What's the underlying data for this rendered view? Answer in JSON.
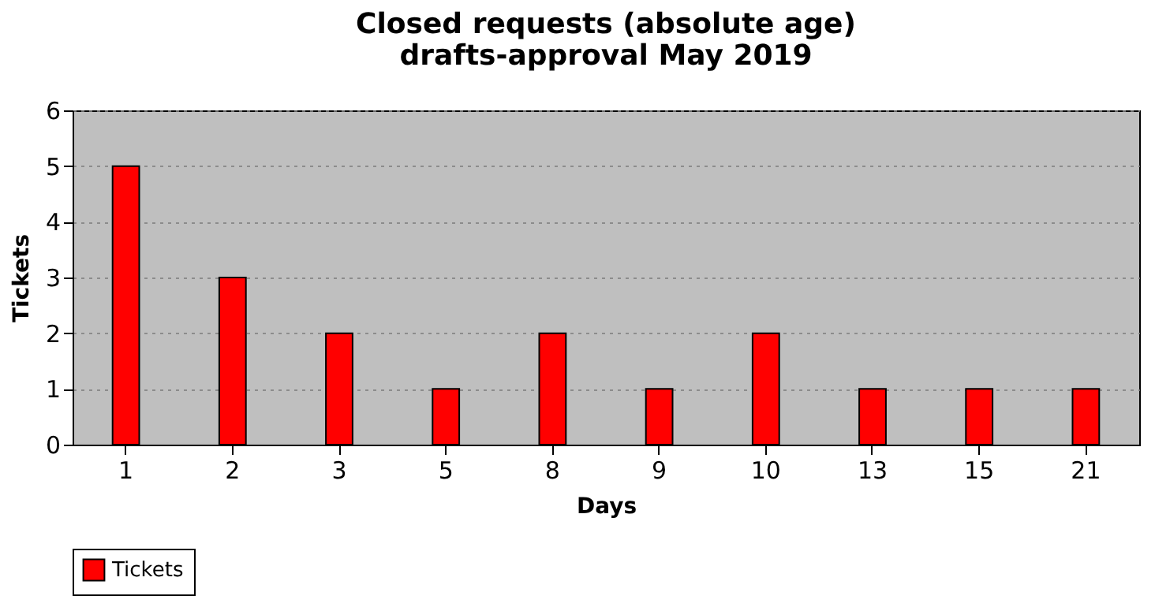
{
  "chart_data": {
    "type": "bar",
    "title": "Closed requests (absolute age)",
    "subtitle": "drafts-approval May 2019",
    "xlabel": "Days",
    "ylabel": "Tickets",
    "categories": [
      "1",
      "2",
      "3",
      "5",
      "8",
      "9",
      "10",
      "13",
      "15",
      "21"
    ],
    "series": [
      {
        "name": "Tickets",
        "color": "#ff0000",
        "values": [
          5,
          3,
          2,
          1,
          2,
          1,
          2,
          1,
          1,
          1
        ]
      }
    ],
    "ylim": [
      0,
      6
    ],
    "yticks": [
      0,
      1,
      2,
      3,
      4,
      5,
      6
    ],
    "grid": "y",
    "legend": "bottom"
  }
}
